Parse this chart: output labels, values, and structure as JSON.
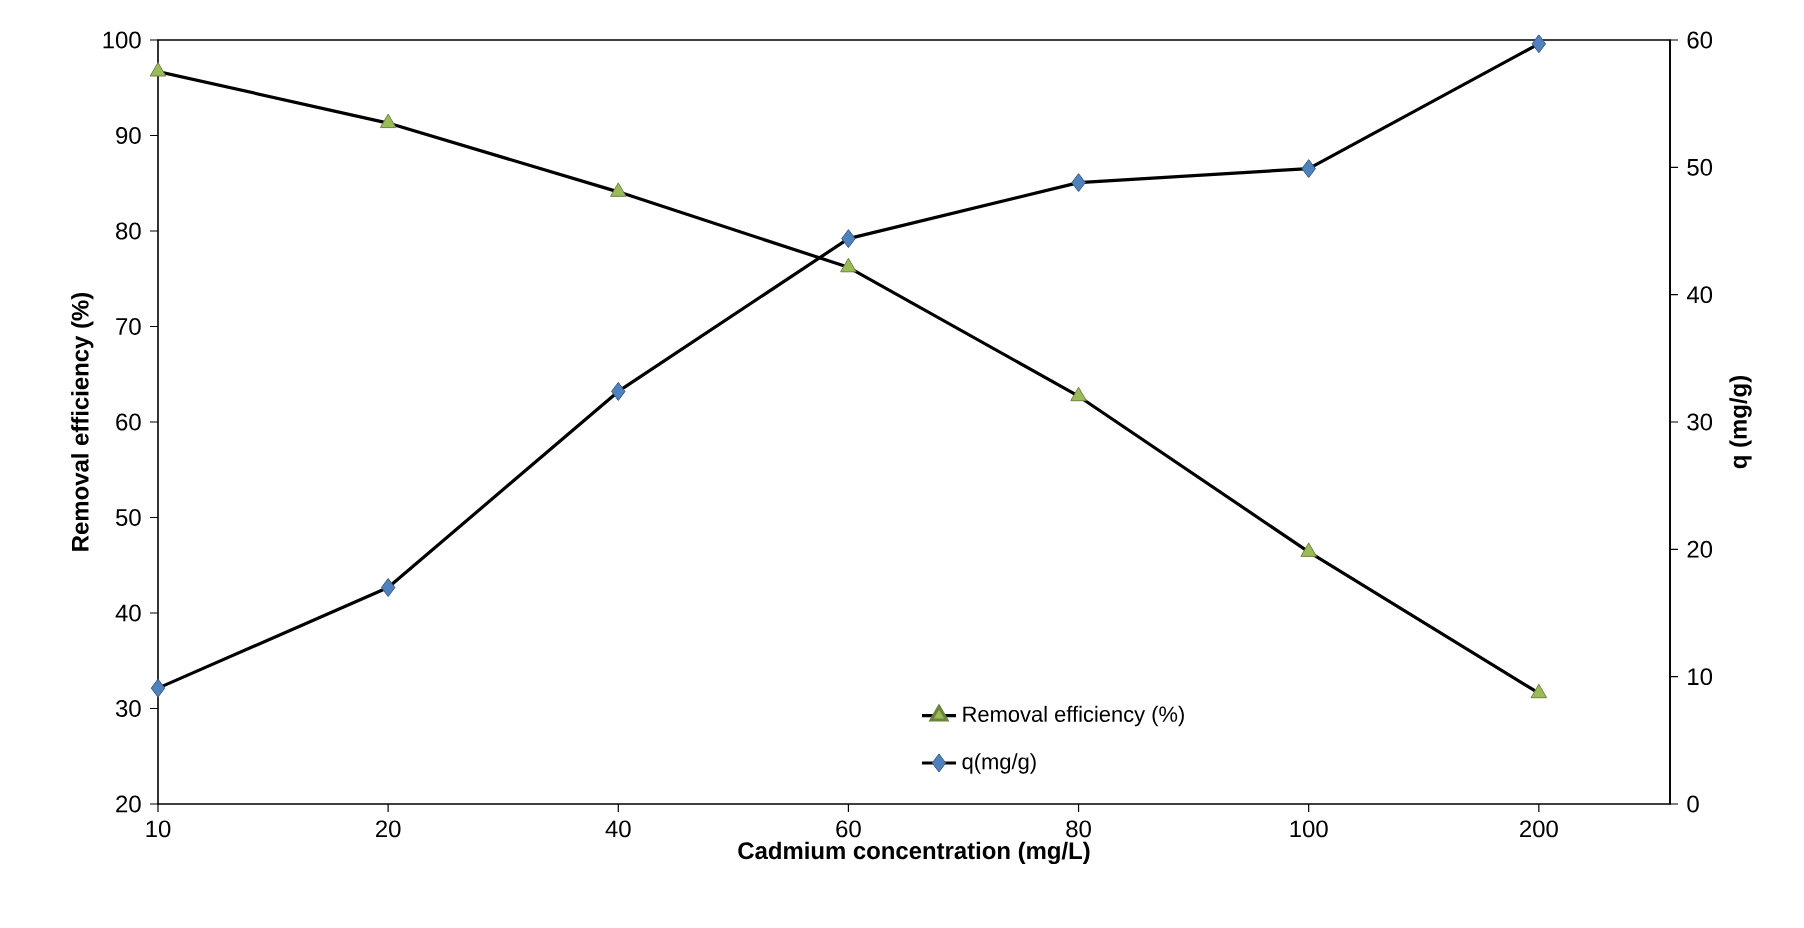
{
  "chart_data": {
    "type": "line",
    "xlabel": "Cadmium concentration (mg/L)",
    "ylabel": "Removal efficiency (%)",
    "y2label": "q (mg/g)",
    "categories": [
      "10",
      "20",
      "40",
      "60",
      "80",
      "100",
      "200"
    ],
    "series": [
      {
        "name": "Removal efficiency (%)",
        "color": "#9bbb59",
        "marker": "triangle",
        "values": [
          96.7,
          91.3,
          84.1,
          76.2,
          62.7,
          46.4,
          31.6
        ]
      },
      {
        "name": "q(mg/g)",
        "color": "#4f81bd",
        "marker": "diamond",
        "axis": "y2",
        "values": [
          9.1,
          17.0,
          32.4,
          44.4,
          48.8,
          49.9,
          59.7
        ]
      }
    ],
    "ylim": [
      20,
      100
    ],
    "yticks": [
      20,
      30,
      40,
      50,
      60,
      70,
      80,
      90,
      100
    ],
    "y2lim": [
      0,
      60
    ],
    "y2ticks": [
      0,
      10,
      20,
      30,
      40,
      50,
      60
    ],
    "grid": false,
    "legend": "bottom right",
    "line_style": "solid"
  }
}
